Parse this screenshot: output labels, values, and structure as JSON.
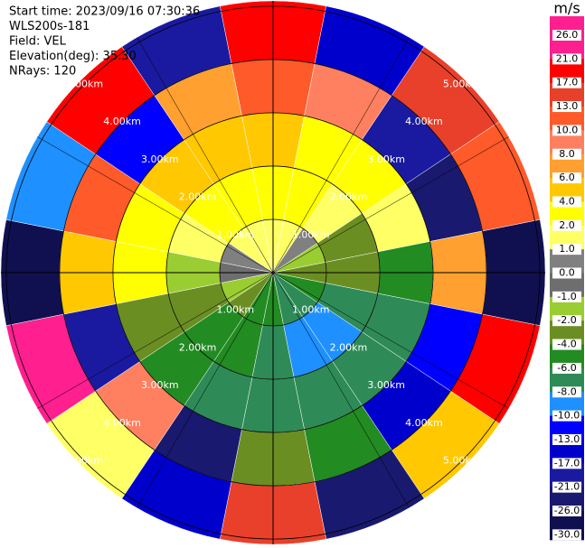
{
  "chart_data": {
    "type": "ppi",
    "header": [
      "Start time: 2023/09/16 07:30:36",
      "WLS200s-181",
      "Field: VEL",
      "Elevation(deg): 35.30",
      "NRays: 120"
    ],
    "unit": "m/s",
    "range_rings": [
      {
        "value": 1,
        "label": "1.00km"
      },
      {
        "value": 2,
        "label": "2.00km"
      },
      {
        "value": 3,
        "label": "3.00km"
      },
      {
        "value": 4,
        "label": "4.00km"
      },
      {
        "value": 5,
        "label": "5.00km"
      }
    ],
    "rlim": [
      0,
      5.1
    ],
    "azimuths": [
      0,
      22.5,
      45,
      67.5,
      90,
      112.5,
      135,
      157.5,
      180,
      202.5,
      225,
      247.5,
      270,
      292.5,
      315,
      337.5
    ],
    "range_edges": [
      0,
      1,
      2,
      3,
      4,
      5.1
    ],
    "values": [
      [
        2,
        4,
        6,
        13,
        21
      ],
      [
        2,
        4,
        4,
        10,
        -13
      ],
      [
        1,
        2,
        4,
        -17,
        17
      ],
      [
        -1,
        -2,
        2,
        -21,
        13
      ],
      [
        -2,
        -2,
        -4,
        8,
        -26
      ],
      [
        -4,
        -6,
        -6,
        -10,
        21
      ],
      [
        -6,
        -8,
        -6,
        -13,
        6
      ],
      [
        -6,
        -8,
        -6,
        -4,
        -21
      ],
      [
        -4,
        -6,
        -6,
        -2,
        17
      ],
      [
        -4,
        -4,
        -6,
        -21,
        -13
      ],
      [
        -2,
        -4,
        -4,
        10,
        2
      ],
      [
        -1,
        -2,
        -2,
        -17,
        26
      ],
      [
        0,
        -1,
        4,
        6,
        -26
      ],
      [
        1,
        2,
        4,
        13,
        -8
      ],
      [
        2,
        4,
        6,
        -10,
        21
      ],
      [
        2,
        4,
        6,
        8,
        -17
      ]
    ],
    "colorbar": {
      "ticks": [
        {
          "value": 26,
          "label": "26.0"
        },
        {
          "value": 21,
          "label": "21.0"
        },
        {
          "value": 17,
          "label": "17.0"
        },
        {
          "value": 13,
          "label": "13.0"
        },
        {
          "value": 10,
          "label": "10.0"
        },
        {
          "value": 8,
          "label": "8.0"
        },
        {
          "value": 6,
          "label": "6.0"
        },
        {
          "value": 4,
          "label": "4.0"
        },
        {
          "value": 2,
          "label": "2.0"
        },
        {
          "value": 1,
          "label": "1.0"
        },
        {
          "value": 0,
          "label": "0.0"
        },
        {
          "value": -1,
          "label": "-1.0"
        },
        {
          "value": -2,
          "label": "-2.0"
        },
        {
          "value": -4,
          "label": "-4.0"
        },
        {
          "value": -6,
          "label": "-6.0"
        },
        {
          "value": -8,
          "label": "-8.0"
        },
        {
          "value": -10,
          "label": "-10.0"
        },
        {
          "value": -13,
          "label": "-13.0"
        },
        {
          "value": -17,
          "label": "-17.0"
        },
        {
          "value": -21,
          "label": "-21.0"
        },
        {
          "value": -26,
          "label": "-26.0"
        },
        {
          "value": -30,
          "label": "-30.0"
        }
      ],
      "colors": [
        "#ff1f8f",
        "#ff0000",
        "#e8402a",
        "#ff5a2a",
        "#ff8060",
        "#ffa030",
        "#ffc800",
        "#ffff00",
        "#ffff66",
        "#808080",
        "#6e6e6e",
        "#9acd32",
        "#6b8e23",
        "#228b22",
        "#2e8b57",
        "#1e90ff",
        "#0000ff",
        "#0000cd",
        "#1a1aa0",
        "#191970",
        "#101050"
      ]
    }
  }
}
